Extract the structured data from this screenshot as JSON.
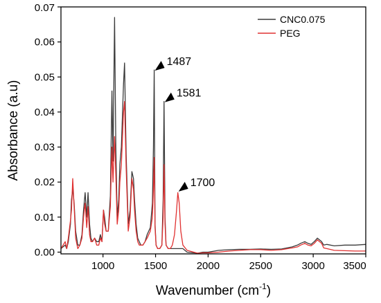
{
  "chart_data": {
    "type": "line",
    "xlabel": "Wavenumber (cm",
    "xlabel_sup": "-1",
    "xlabel_end": ")",
    "ylabel": "Absorbance (a.u)",
    "xlim": [
      600,
      3500
    ],
    "ylim": [
      -0.0005,
      0.07
    ],
    "x_ticks": [
      1000,
      1500,
      2000,
      2500,
      3000,
      3500
    ],
    "x_tick_labels": [
      "1000",
      "1500",
      "2000",
      "2500",
      "3000",
      "3500"
    ],
    "y_ticks": [
      0.0,
      0.01,
      0.02,
      0.03,
      0.04,
      0.05,
      0.06,
      0.07
    ],
    "y_tick_labels": [
      "0.00",
      "0.01",
      "0.02",
      "0.03",
      "0.04",
      "0.05",
      "0.06",
      "0.07"
    ],
    "grid": false,
    "legend_position": "top-right",
    "series": [
      {
        "name": "CNC0.075",
        "color": "#3a3a3a",
        "x": [
          600,
          640,
          655,
          670,
          690,
          700,
          712,
          725,
          740,
          760,
          780,
          800,
          815,
          830,
          845,
          858,
          872,
          885,
          900,
          920,
          940,
          960,
          975,
          990,
          1005,
          1015,
          1030,
          1050,
          1070,
          1085,
          1095,
          1110,
          1122,
          1135,
          1150,
          1160,
          1175,
          1195,
          1205,
          1220,
          1240,
          1258,
          1275,
          1290,
          1300,
          1315,
          1330,
          1345,
          1360,
          1380,
          1400,
          1420,
          1450,
          1470,
          1480,
          1487,
          1495,
          1505,
          1520,
          1540,
          1560,
          1572,
          1581,
          1590,
          1600,
          1620,
          1640,
          1660,
          1680,
          1700,
          1712,
          1725,
          1740,
          1760,
          1800,
          1900,
          1950,
          2000,
          2100,
          2200,
          2300,
          2400,
          2500,
          2600,
          2700,
          2800,
          2850,
          2880,
          2920,
          2950,
          2980,
          3010,
          3040,
          3060,
          3080,
          3100,
          3130,
          3200,
          3300,
          3400,
          3500
        ],
        "y": [
          0.001,
          0.002,
          0.001,
          0.003,
          0.008,
          0.015,
          0.018,
          0.014,
          0.006,
          0.002,
          0.002,
          0.005,
          0.012,
          0.017,
          0.01,
          0.017,
          0.008,
          0.004,
          0.003,
          0.004,
          0.003,
          0.003,
          0.005,
          0.003,
          0.012,
          0.01,
          0.006,
          0.006,
          0.016,
          0.046,
          0.026,
          0.067,
          0.03,
          0.01,
          0.015,
          0.025,
          0.03,
          0.048,
          0.054,
          0.028,
          0.008,
          0.012,
          0.023,
          0.021,
          0.015,
          0.008,
          0.004,
          0.003,
          0.002,
          0.002,
          0.003,
          0.005,
          0.007,
          0.014,
          0.03,
          0.052,
          0.008,
          0.002,
          0.001,
          0.001,
          0.002,
          0.015,
          0.043,
          0.01,
          0.002,
          0.001,
          0.001,
          0.001,
          0.001,
          0.001,
          0.001,
          0.001,
          0.001,
          0.001,
          0.0,
          -0.0003,
          0.0,
          0.0,
          0.0005,
          0.0007,
          0.0008,
          0.0008,
          0.0009,
          0.0008,
          0.0009,
          0.0015,
          0.002,
          0.0025,
          0.003,
          0.0025,
          0.0022,
          0.003,
          0.004,
          0.0035,
          0.003,
          0.002,
          0.0022,
          0.0018,
          0.002,
          0.002,
          0.0022
        ]
      },
      {
        "name": "PEG",
        "color": "#e03030",
        "x": [
          600,
          640,
          655,
          670,
          690,
          700,
          712,
          725,
          740,
          760,
          780,
          800,
          815,
          830,
          845,
          858,
          872,
          885,
          900,
          920,
          940,
          960,
          975,
          990,
          1005,
          1015,
          1030,
          1050,
          1070,
          1085,
          1095,
          1110,
          1122,
          1135,
          1150,
          1160,
          1175,
          1195,
          1205,
          1220,
          1240,
          1258,
          1275,
          1290,
          1300,
          1315,
          1330,
          1345,
          1360,
          1380,
          1400,
          1420,
          1450,
          1470,
          1480,
          1487,
          1495,
          1505,
          1520,
          1540,
          1560,
          1572,
          1581,
          1590,
          1600,
          1620,
          1640,
          1660,
          1680,
          1700,
          1712,
          1725,
          1740,
          1760,
          1800,
          1900,
          1950,
          2000,
          2100,
          2200,
          2300,
          2400,
          2500,
          2600,
          2700,
          2800,
          2850,
          2880,
          2920,
          2950,
          2980,
          3010,
          3040,
          3060,
          3080,
          3100,
          3130,
          3200,
          3300,
          3400,
          3500
        ],
        "y": [
          0.001,
          0.003,
          0.001,
          0.004,
          0.009,
          0.012,
          0.021,
          0.013,
          0.004,
          0.001,
          0.002,
          0.004,
          0.01,
          0.014,
          0.007,
          0.013,
          0.005,
          0.003,
          0.003,
          0.004,
          0.002,
          0.002,
          0.004,
          0.003,
          0.012,
          0.008,
          0.006,
          0.006,
          0.013,
          0.03,
          0.02,
          0.033,
          0.022,
          0.008,
          0.012,
          0.02,
          0.025,
          0.04,
          0.043,
          0.024,
          0.006,
          0.01,
          0.021,
          0.018,
          0.012,
          0.006,
          0.003,
          0.002,
          0.002,
          0.002,
          0.003,
          0.004,
          0.006,
          0.01,
          0.018,
          0.027,
          0.007,
          0.002,
          0.001,
          0.001,
          0.002,
          0.01,
          0.025,
          0.008,
          0.002,
          0.001,
          0.001,
          0.002,
          0.005,
          0.012,
          0.017,
          0.014,
          0.006,
          0.002,
          0.0005,
          -0.0003,
          -0.0002,
          -0.0002,
          0.0,
          0.0003,
          0.0005,
          0.0007,
          0.0007,
          0.0005,
          0.0007,
          0.0012,
          0.0015,
          0.002,
          0.0025,
          0.002,
          0.0018,
          0.0025,
          0.0035,
          0.003,
          0.0025,
          0.0012,
          0.001,
          0.0005,
          0.0004,
          0.0003,
          0.0003
        ]
      }
    ],
    "annotations": [
      {
        "label": "1487",
        "x": 1487,
        "y": 0.052
      },
      {
        "label": "1581",
        "x": 1581,
        "y": 0.043
      },
      {
        "label": "1700",
        "x": 1712,
        "y": 0.0175
      }
    ]
  }
}
